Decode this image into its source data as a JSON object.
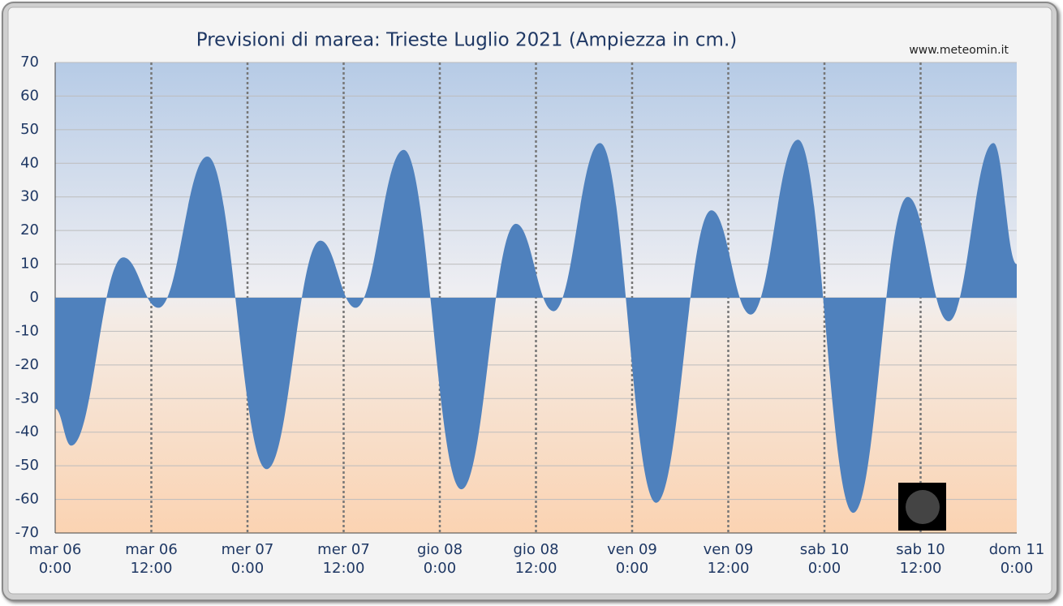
{
  "chart_data": {
    "type": "area",
    "title": "Previsioni di marea: Trieste Luglio 2021 (Ampiezza in cm.)",
    "source": "www.meteomin.it",
    "x": [
      0,
      2.0,
      8.5,
      12.9,
      19.0,
      26.4,
      33.1,
      37.5,
      43.5,
      50.7,
      57.5,
      62.2,
      68.0,
      75.0,
      81.9,
      86.8,
      92.7,
      99.6,
      106.4,
      111.5,
      117.1,
      120
    ],
    "series": [
      {
        "name": "Trieste",
        "color": "#4f81bd",
        "values": [
          -33,
          -44,
          12,
          -3,
          42,
          -51,
          17,
          -3,
          44,
          -57,
          22,
          -4,
          46,
          -61,
          26,
          -5,
          47,
          -64,
          30,
          -7,
          46,
          10
        ]
      }
    ],
    "xlim": [
      0,
      120
    ],
    "xticks": [
      {
        "value": 0,
        "label": [
          "mar   06",
          "0:00"
        ]
      },
      {
        "value": 12,
        "label": [
          "mar   06",
          "12:00"
        ]
      },
      {
        "value": 24,
        "label": [
          "mer   07",
          "0:00"
        ]
      },
      {
        "value": 36,
        "label": [
          "mer   07",
          "12:00"
        ]
      },
      {
        "value": 48,
        "label": [
          "gio   08",
          "0:00"
        ]
      },
      {
        "value": 60,
        "label": [
          "gio   08",
          "12:00"
        ]
      },
      {
        "value": 72,
        "label": [
          "ven   09",
          "0:00"
        ]
      },
      {
        "value": 84,
        "label": [
          "ven   09",
          "12:00"
        ]
      },
      {
        "value": 96,
        "label": [
          "sab   10",
          "0:00"
        ]
      },
      {
        "value": 108,
        "label": [
          "sab   10",
          "12:00"
        ]
      },
      {
        "value": 120,
        "label": [
          "dom   11",
          "0:00"
        ]
      }
    ],
    "ylim": [
      -70,
      70
    ],
    "yticks": [
      -70,
      -60,
      -50,
      -40,
      -30,
      -20,
      -10,
      0,
      10,
      20,
      30,
      40,
      50,
      60,
      70
    ],
    "grid": true
  }
}
